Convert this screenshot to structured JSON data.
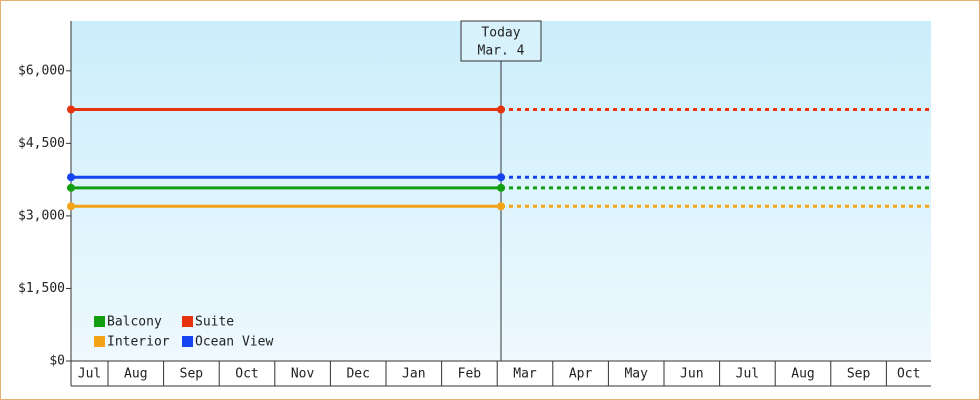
{
  "chart_data": {
    "type": "line",
    "categories": [
      "Jul",
      "Aug",
      "Sep",
      "Oct",
      "Nov",
      "Dec",
      "Jan",
      "Feb",
      "Mar",
      "Apr",
      "May",
      "Jun",
      "Jul",
      "Aug",
      "Sep",
      "Oct"
    ],
    "series": [
      {
        "name": "Balcony",
        "color": "#12a012",
        "value": 3580
      },
      {
        "name": "Suite",
        "color": "#e8340e",
        "value": 5200
      },
      {
        "name": "Interior",
        "color": "#f2a416",
        "value": 3200
      },
      {
        "name": "Ocean View",
        "color": "#1445f0",
        "value": 3800
      }
    ],
    "ylim": [
      0,
      7030
    ],
    "yticks": [
      {
        "value": 0,
        "label": "$0"
      },
      {
        "value": 1500,
        "label": "$1,500"
      },
      {
        "value": 3000,
        "label": "$3,000"
      },
      {
        "value": 4500,
        "label": "$4,500"
      },
      {
        "value": 6000,
        "label": "$6,000"
      }
    ],
    "annotation": {
      "label": "Today",
      "date": "Mar. 4"
    }
  }
}
